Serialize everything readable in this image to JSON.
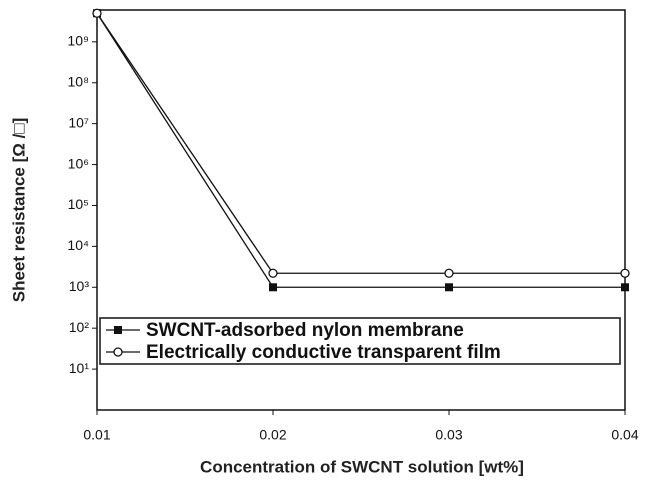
{
  "chart_data": {
    "type": "line",
    "xlabel": "Concentration of SWCNT solution [wt%]",
    "ylabel": "Sheet resistance [Ω /□]",
    "x": [
      0.01,
      0.02,
      0.03,
      0.04
    ],
    "series": [
      {
        "name": "SWCNT-adsorbed nylon membrane",
        "color": "#111111",
        "marker": "filled-square",
        "values": [
          5000000000,
          1000,
          1000,
          1000
        ]
      },
      {
        "name": "Electrically conductive transparent film",
        "color": "#111111",
        "marker": "open-circle",
        "values": [
          5000000000,
          2200,
          2200,
          2200
        ]
      }
    ],
    "xlim": [
      0.01,
      0.04
    ],
    "xticks": [
      0.01,
      0.02,
      0.03,
      0.04
    ],
    "ylim": [
      1,
      6000000000
    ],
    "yscale": "log",
    "yticks": [
      {
        "value": 10,
        "label": "10¹"
      },
      {
        "value": 100,
        "label": "10²"
      },
      {
        "value": 1000,
        "label": "10³"
      },
      {
        "value": 10000,
        "label": "10⁴"
      },
      {
        "value": 100000,
        "label": "10⁵"
      },
      {
        "value": 1000000,
        "label": "10⁶"
      },
      {
        "value": 10000000,
        "label": "10⁷"
      },
      {
        "value": 100000000,
        "label": "10⁸"
      },
      {
        "value": 1000000000,
        "label": "10⁹"
      }
    ],
    "legend": "lower left",
    "grid": false
  }
}
